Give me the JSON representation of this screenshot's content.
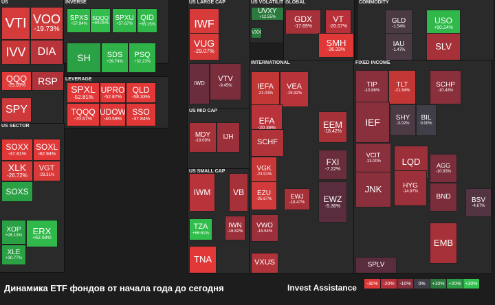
{
  "footer": {
    "title": "Динамика ETF фондов от начала года до сегодня",
    "brand": "Invest Assistance",
    "legend": [
      {
        "label": "-30%",
        "color": "#e03737"
      },
      {
        "label": "-20%",
        "color": "#b8313a"
      },
      {
        "label": "-10%",
        "color": "#85303d"
      },
      {
        "label": "0%",
        "color": "#403f49"
      },
      {
        "label": "+10%",
        "color": "#2b7a3e"
      },
      {
        "label": "+20%",
        "color": "#2a9a45"
      },
      {
        "label": "+30%",
        "color": "#33c150"
      }
    ]
  },
  "chart_data": {
    "type": "heatmap",
    "title": "Динамика ETF фондов от начала года до сегодня",
    "sectors": [
      {
        "name": "US",
        "tiles": [
          {
            "t": "VTI",
            "v": null,
            "c": "#d63b3b"
          },
          {
            "t": "VOO",
            "v": "-19.73%",
            "c": "#cf3b3b"
          },
          {
            "t": "IVV",
            "v": null,
            "c": "#c93839"
          },
          {
            "t": "DIA",
            "v": null,
            "c": "#b8333a"
          },
          {
            "t": "QQQ",
            "v": "-29.09%",
            "c": "#e23b3b"
          },
          {
            "t": "RSP",
            "v": null,
            "c": "#b1333a"
          },
          {
            "t": "SPY",
            "v": null,
            "c": "#ce3a3b"
          }
        ]
      },
      {
        "name": "INVERSE",
        "tiles": [
          {
            "t": "SPXS",
            "v": "+57.94%",
            "c": "#30b84a"
          },
          {
            "t": "SQQQ",
            "v": "+84.05%",
            "c": "#31be4c"
          },
          {
            "t": "SPXU",
            "v": "+57.67%",
            "c": "#30b84a"
          },
          {
            "t": "QID",
            "v": "+65.15%",
            "c": "#30b84a"
          },
          {
            "t": "SH",
            "v": null,
            "c": "#2aa144"
          },
          {
            "t": "SDS",
            "v": "+39.74%",
            "c": "#2fb349"
          },
          {
            "t": "PSQ",
            "v": "+32.23%",
            "c": "#2fb349"
          }
        ]
      },
      {
        "name": "LEVERAGE",
        "tiles": [
          {
            "t": "SPXL",
            "v": "-52.81%",
            "c": "#e23838"
          },
          {
            "t": "UPRO",
            "v": "-52.87%",
            "c": "#e23838"
          },
          {
            "t": "QLD",
            "v": "-58.33%",
            "c": "#e23838"
          },
          {
            "t": "TQQQ",
            "v": "-70.67%",
            "c": "#e23838"
          },
          {
            "t": "UDOW",
            "v": "-40.59%",
            "c": "#e03737"
          },
          {
            "t": "SSO",
            "v": "-37.84%",
            "c": "#e03737"
          }
        ]
      },
      {
        "name": "US SECTOR",
        "tiles": [
          {
            "t": "SOXX",
            "v": "-37.81%",
            "c": "#e03737"
          },
          {
            "t": "SOXL",
            "v": "-82.94%",
            "c": "#e23838"
          },
          {
            "t": "XLK",
            "v": "-26.72%",
            "c": "#d63b3b"
          },
          {
            "t": "VGT",
            "v": "-28.31%",
            "c": "#d83a3a"
          },
          {
            "t": "SOXS",
            "v": null,
            "c": "#2aa144"
          },
          {
            "t": "XOP",
            "v": "+26.13%",
            "c": "#2aa144"
          },
          {
            "t": "ERX",
            "v": "+62.69%",
            "c": "#30b84a"
          },
          {
            "t": "XLE",
            "v": "+30.77%",
            "c": "#2aa144"
          }
        ]
      },
      {
        "name": "US LARGE CAP",
        "tiles": [
          {
            "t": "IWF",
            "v": null,
            "c": "#d83a3a"
          },
          {
            "t": "VUG",
            "v": "-29.07%",
            "c": "#d83a3a"
          },
          {
            "t": "IWD",
            "v": null,
            "c": "#6a2d3c"
          },
          {
            "t": "VTV",
            "v": "-9.45%",
            "c": "#7a2e3c"
          }
        ]
      },
      {
        "name": "US MID CAP",
        "tiles": [
          {
            "t": "MDY",
            "v": "-19.09%",
            "c": "#a63139"
          },
          {
            "t": "IJH",
            "v": null,
            "c": "#9c303a"
          }
        ]
      },
      {
        "name": "US SMALL CAP",
        "tiles": [
          {
            "t": "IWM",
            "v": null,
            "c": "#b8333a"
          },
          {
            "t": "VB",
            "v": null,
            "c": "#a63139"
          },
          {
            "t": "TZA",
            "v": "+66.61%",
            "c": "#31be4c"
          },
          {
            "t": "TNA",
            "v": null,
            "c": "#e23838"
          },
          {
            "t": "IWN",
            "v": "-16.82%",
            "c": "#9c303a"
          }
        ]
      },
      {
        "name": "US VOLATILITY",
        "tiles": [
          {
            "t": "UVXY",
            "v": "+12.55%",
            "c": "#2b7a3e"
          },
          {
            "t": "VXX",
            "v": null,
            "c": "#2b7a3e"
          }
        ]
      },
      {
        "name": "GLOBAL",
        "tiles": [
          {
            "t": "GDX",
            "v": "-17.69%",
            "c": "#a63139"
          },
          {
            "t": "VT",
            "v": "-20.07%",
            "c": "#b8313a"
          },
          {
            "t": "SMH",
            "v": "-36.33%",
            "c": "#e03737"
          }
        ]
      },
      {
        "name": "INTERNATIONAL",
        "tiles": [
          {
            "t": "IEFA",
            "v": "-21.03%",
            "c": "#c23636"
          },
          {
            "t": "VEA",
            "v": "-19.92%",
            "c": "#b8333a"
          },
          {
            "t": "EFA",
            "v": "-20.39%",
            "c": "#bb333a"
          },
          {
            "t": "EEM",
            "v": "-18.42%",
            "c": "#a63139"
          },
          {
            "t": "SCHF",
            "v": null,
            "c": "#b1333a"
          },
          {
            "t": "VGK",
            "v": "-23.91%",
            "c": "#c93839"
          },
          {
            "t": "FXI",
            "v": "-7.22%",
            "c": "#6a2d3c"
          },
          {
            "t": "EZU",
            "v": "-25.67%",
            "c": "#d13a3b"
          },
          {
            "t": "EWJ",
            "v": "-18.47%",
            "c": "#a63139"
          },
          {
            "t": "EWZ",
            "v": "-5.36%",
            "c": "#5a2d3e"
          },
          {
            "t": "VWO",
            "v": "-15.54%",
            "c": "#9c303a"
          },
          {
            "t": "VXUS",
            "v": null,
            "c": "#b1333a"
          }
        ]
      },
      {
        "name": "COMMODITY",
        "tiles": [
          {
            "t": "GLD",
            "v": "-1.54%",
            "c": "#4b3a44"
          },
          {
            "t": "USO",
            "v": "+50.24%",
            "c": "#30b84a"
          },
          {
            "t": "IAU",
            "v": "-1.47%",
            "c": "#4b3a44"
          },
          {
            "t": "SLV",
            "v": null,
            "c": "#a63139"
          }
        ]
      },
      {
        "name": "FIXED INCOME",
        "tiles": [
          {
            "t": "TIP",
            "v": "-10.86%",
            "c": "#8a2f3c"
          },
          {
            "t": "TLT",
            "v": "-21.84%",
            "c": "#c23636"
          },
          {
            "t": "SCHP",
            "v": "-10.43%",
            "c": "#8a2f3c"
          },
          {
            "t": "IEF",
            "v": null,
            "c": "#8a2f3c"
          },
          {
            "t": "SHY",
            "v": "-3.02%",
            "c": "#4b3a44"
          },
          {
            "t": "BIL",
            "v": "0.00%",
            "c": "#403f49"
          },
          {
            "t": "VCIT",
            "v": "-13.00%",
            "c": "#8a2f3c"
          },
          {
            "t": "LQD",
            "v": null,
            "c": "#9c303a"
          },
          {
            "t": "JNK",
            "v": null,
            "c": "#8a2f3c"
          },
          {
            "t": "HYG",
            "v": "-14.97%",
            "c": "#9c303a"
          },
          {
            "t": "AGG",
            "v": "-10.93%",
            "c": "#7a2e3c"
          },
          {
            "t": "BND",
            "v": null,
            "c": "#7a2e3c"
          },
          {
            "t": "EMB",
            "v": null,
            "c": "#a63139"
          },
          {
            "t": "BSV",
            "v": "-4.67%",
            "c": "#523442"
          },
          {
            "t": "SPLV",
            "v": null,
            "c": "#5a2d3e"
          }
        ]
      }
    ]
  }
}
